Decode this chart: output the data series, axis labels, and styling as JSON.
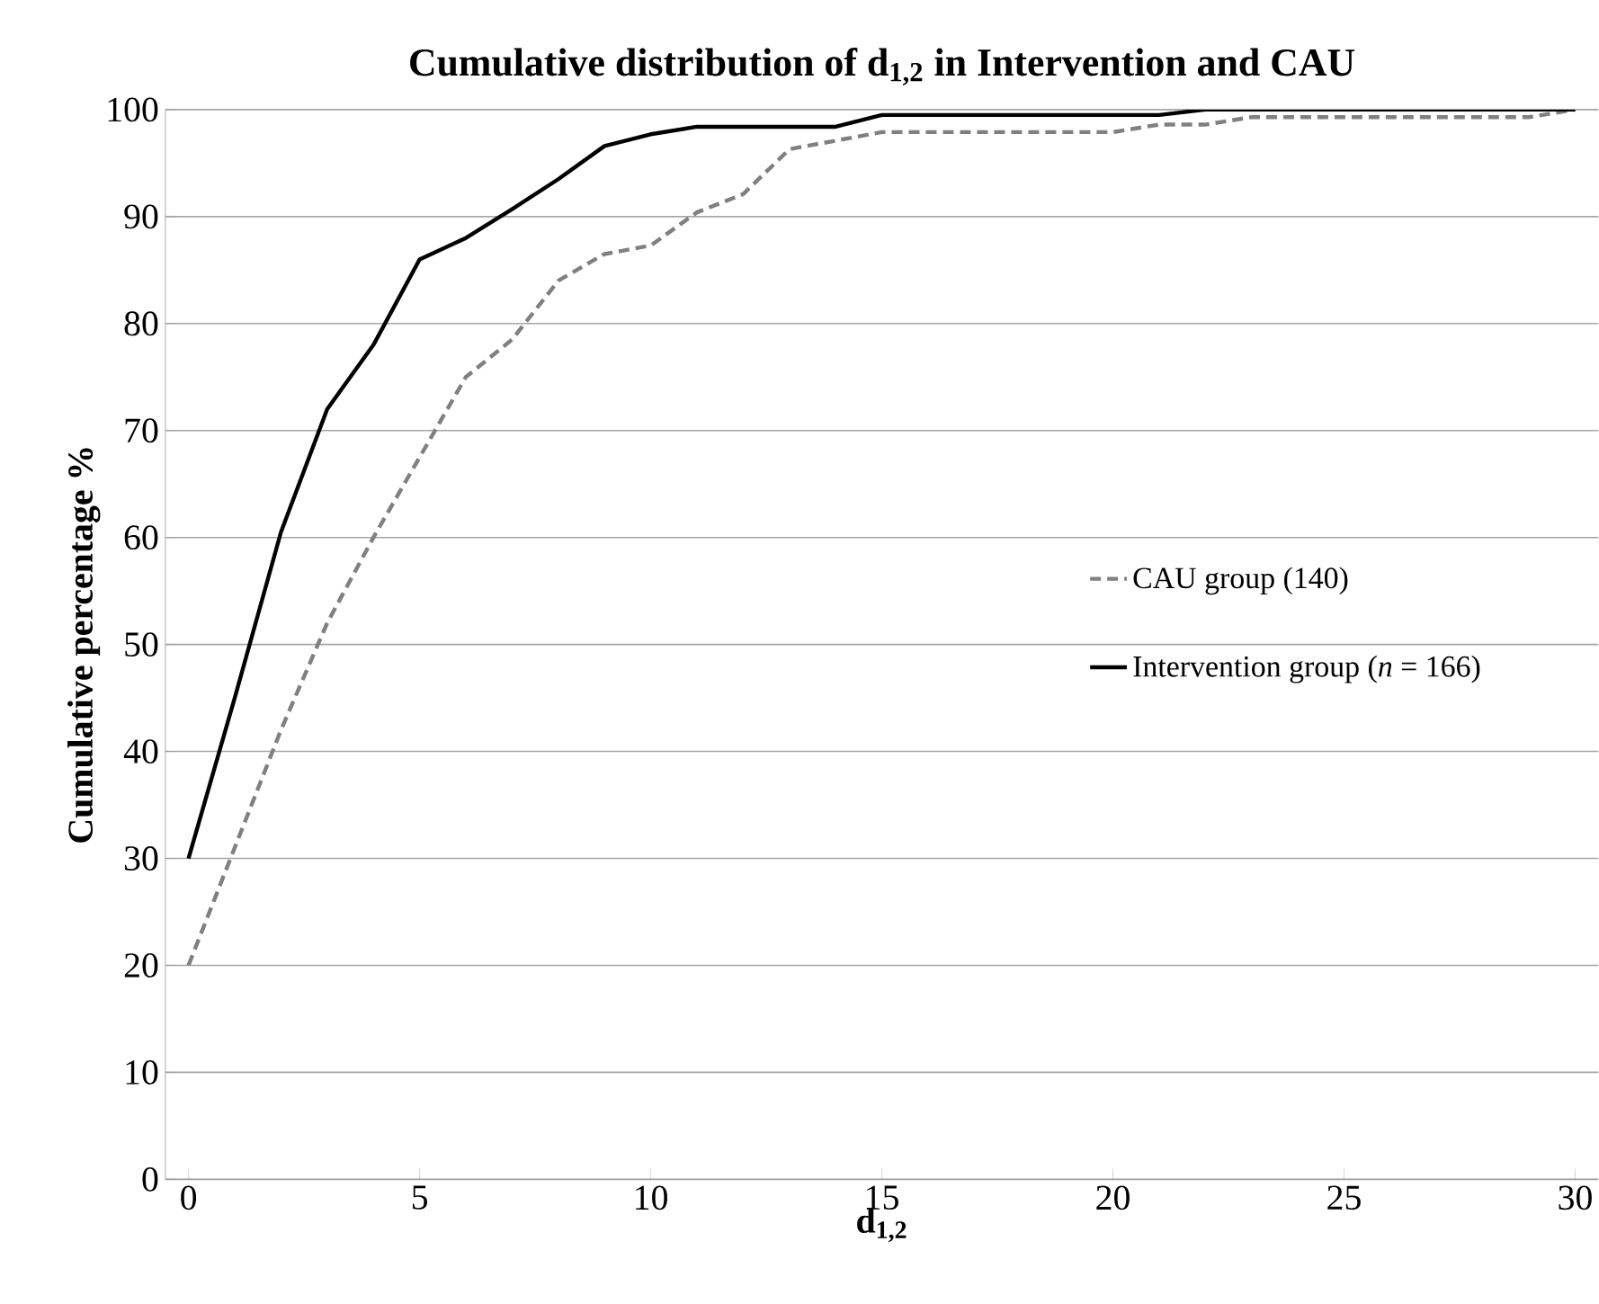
{
  "chart_data": {
    "type": "line",
    "title": "Cumulative distribution of d$_{1,2}$ in Intervention and CAU",
    "xlabel": "d$_{1,2}$",
    "ylabel": "Cumulative percentage %",
    "x": [
      0,
      1,
      2,
      3,
      4,
      5,
      6,
      7,
      8,
      9,
      10,
      11,
      12,
      13,
      14,
      15,
      16,
      17,
      18,
      19,
      20,
      21,
      22,
      23,
      24,
      25,
      26,
      27,
      28,
      29,
      30
    ],
    "series": [
      {
        "name": "CAU group (140)",
        "color": "#808080",
        "line_style": "dashed",
        "values": [
          20,
          31,
          42,
          52,
          60,
          67.5,
          75,
          78.5,
          84,
          86.5,
          87.3,
          90.4,
          92.1,
          96.3,
          97.1,
          97.9,
          97.9,
          97.9,
          97.9,
          97.9,
          97.9,
          98.6,
          98.6,
          99.3,
          99.3,
          99.3,
          99.3,
          99.3,
          99.3,
          99.3,
          100
        ]
      },
      {
        "name": "Intervention group (*n* = 166)",
        "color": "#000000",
        "line_style": "solid",
        "values": [
          30,
          45,
          60.5,
          72,
          78,
          86,
          88,
          90.7,
          93.5,
          96.6,
          97.7,
          98.4,
          98.4,
          98.4,
          98.4,
          99.5,
          99.5,
          99.5,
          99.5,
          99.5,
          99.5,
          99.5,
          100,
          100,
          100,
          100,
          100,
          100,
          100,
          100,
          100
        ]
      }
    ],
    "xlim": [
      -0.5,
      30.5
    ],
    "ylim": [
      0,
      100
    ],
    "xticks": [
      0,
      5,
      10,
      15,
      20,
      25,
      30
    ],
    "yticks": [
      0,
      10,
      20,
      30,
      40,
      50,
      60,
      70,
      80,
      90,
      100
    ],
    "grid": "y",
    "legend": "right",
    "marker": "none"
  }
}
